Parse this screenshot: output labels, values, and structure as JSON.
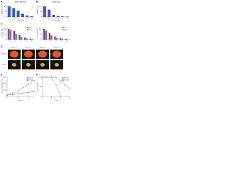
{
  "chart_data": [
    {
      "type": "bar",
      "panel": "A",
      "title": "MDA-MB-231",
      "y_label": "Viability (%)",
      "x_label": "Dose (µM)",
      "categories": [
        "0",
        "0.5",
        "1",
        "2",
        "5",
        "10"
      ],
      "values": [
        100,
        85,
        60,
        30,
        15,
        8
      ],
      "color": "#3a57c4",
      "ylim": [
        0,
        120
      ],
      "yticks": [
        0,
        50,
        100
      ]
    },
    {
      "type": "bar",
      "panel": "B",
      "title": "SUM-159",
      "y_label": "Viability (%)",
      "x_label": "Dose (µM)",
      "categories": [
        "0",
        "0.5",
        "1",
        "2",
        "5",
        "10"
      ],
      "values": [
        100,
        70,
        20,
        10,
        6,
        4
      ],
      "color": "#3a57c4",
      "ylim": [
        0,
        120
      ],
      "yticks": [
        0,
        50,
        100
      ]
    },
    {
      "type": "bar",
      "panel": "C",
      "y_label": "Colonies (%)",
      "categories": [
        "0",
        "1",
        "2",
        "5",
        "10"
      ],
      "series": [
        {
          "name": "Ctrl",
          "color": "#3a57c4",
          "values": [
            100,
            80,
            45,
            20,
            10
          ]
        },
        {
          "name": "Drug",
          "color": "#d9534f",
          "values": [
            90,
            55,
            25,
            12,
            5
          ]
        }
      ],
      "ylim": [
        0,
        120
      ],
      "yticks": [
        0,
        50,
        100
      ]
    },
    {
      "type": "bar",
      "panel": "",
      "y_label": "Colonies (%)",
      "categories": [
        "0",
        "1",
        "2",
        "5",
        "10"
      ],
      "series": [
        {
          "name": "Ctrl",
          "color": "#3a57c4",
          "values": [
            100,
            60,
            30,
            15,
            8
          ]
        },
        {
          "name": "Drug",
          "color": "#d9534f",
          "values": [
            85,
            40,
            18,
            9,
            4
          ]
        }
      ],
      "ylim": [
        0,
        120
      ],
      "yticks": [
        0,
        50,
        100
      ]
    },
    {
      "type": "line",
      "panel": "E",
      "y_label": "Tumor volume (mm³)",
      "x_label": "Days",
      "x": [
        0,
        5,
        10,
        15,
        20,
        25
      ],
      "series": [
        {
          "name": "Vehicle",
          "color": "#d9534f",
          "values": [
            100,
            250,
            450,
            700,
            950,
            1250
          ]
        },
        {
          "name": "Treated",
          "color": "#3a57c4",
          "values": [
            100,
            150,
            200,
            260,
            320,
            380
          ]
        }
      ],
      "xlim": [
        0,
        25
      ],
      "xticks": [
        0,
        10,
        20
      ],
      "ylim": [
        0,
        1500
      ],
      "yticks": [
        0,
        500,
        1000,
        1500
      ]
    },
    {
      "type": "line",
      "panel": "F",
      "y_label": "Survival (%)",
      "x_label": "Days",
      "x": [
        0,
        20,
        30,
        40,
        50,
        60
      ],
      "series": [
        {
          "name": "Vehicle",
          "color": "#d9534f",
          "values": [
            100,
            100,
            60,
            0,
            null,
            null
          ]
        },
        {
          "name": "Treated",
          "color": "#3a57c4",
          "values": [
            100,
            100,
            100,
            80,
            60,
            40
          ]
        }
      ],
      "xlim": [
        0,
        60
      ],
      "xticks": [
        0,
        20,
        40,
        60
      ],
      "ylim": [
        0,
        100
      ],
      "yticks": [
        0,
        50,
        100
      ]
    }
  ],
  "image_panel": {
    "panel": "D",
    "row_labels": [
      "Vehicle",
      "Treated"
    ],
    "column_labels": [
      "Mouse 1",
      "Mouse 2",
      "Mouse 3",
      "Mouse 4"
    ]
  }
}
